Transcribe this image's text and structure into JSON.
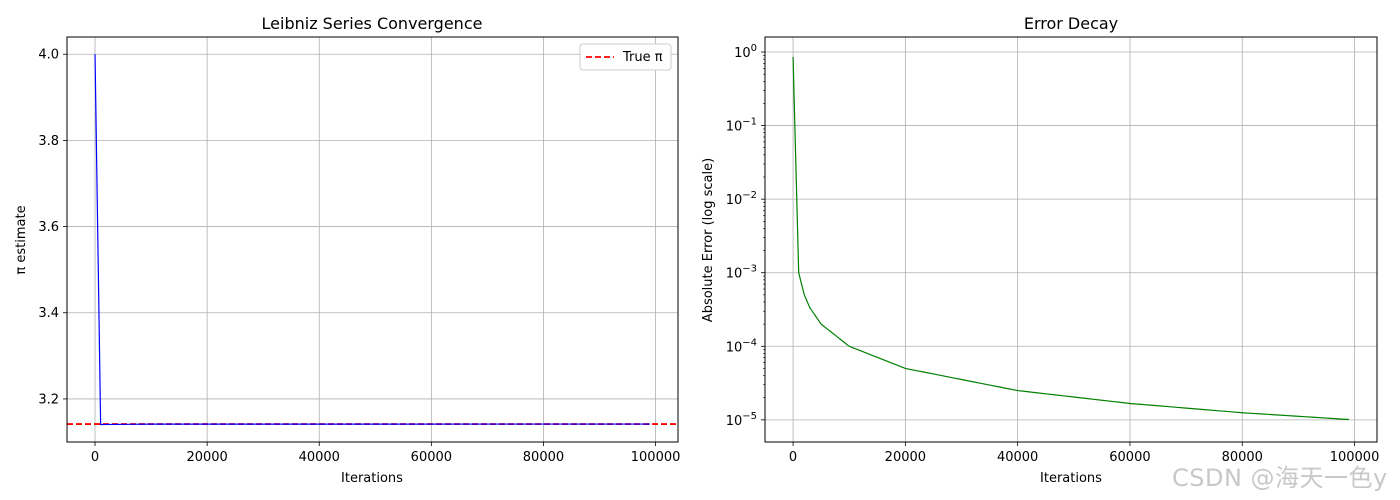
{
  "watermark": "CSDN @海天一色y",
  "colors": {
    "pi_line": "#0000ff",
    "true_pi": "#ff0000",
    "error_line": "#008000",
    "grid": "#b0b0b0"
  },
  "chart_data": [
    {
      "type": "line",
      "title": "Leibniz Series Convergence",
      "xlabel": "Iterations",
      "ylabel": "π estimate",
      "xlim": [
        -5000,
        104000
      ],
      "ylim": [
        3.1,
        4.04
      ],
      "xticks": [
        0,
        20000,
        40000,
        60000,
        80000,
        100000
      ],
      "yticks": [
        3.2,
        3.4,
        3.6,
        3.8,
        4.0
      ],
      "grid": true,
      "legend": {
        "position": "top-right",
        "entries": [
          "True π"
        ]
      },
      "series": [
        {
          "values_desc": "pi estimate",
          "x": [
            0,
            1000,
            10000,
            50000,
            99000
          ],
          "y": [
            4.0,
            3.1406,
            3.14149,
            3.14157,
            3.14158
          ]
        }
      ],
      "reference_line": {
        "name": "True π",
        "y": 3.14159,
        "style": "dashed"
      }
    },
    {
      "type": "line",
      "title": "Error Decay",
      "xlabel": "Iterations",
      "ylabel": "Absolute Error (log scale)",
      "yscale": "log",
      "xlim": [
        -5000,
        104000
      ],
      "ylim": [
        5e-06,
        1.6
      ],
      "xticks": [
        0,
        20000,
        40000,
        60000,
        80000,
        100000
      ],
      "yticks": [
        1,
        0.1,
        0.01,
        0.001,
        0.0001,
        1e-05
      ],
      "ytick_labels": [
        "10^0",
        "10^-1",
        "10^-2",
        "10^-3",
        "10^-4",
        "10^-5"
      ],
      "grid": true,
      "series": [
        {
          "x": [
            0,
            1000,
            2000,
            3000,
            5000,
            10000,
            20000,
            40000,
            60000,
            80000,
            99000
          ],
          "y": [
            0.858,
            0.001,
            0.0005,
            0.000333,
            0.0002,
            0.0001,
            5e-05,
            2.5e-05,
            1.67e-05,
            1.25e-05,
            1.01e-05
          ]
        }
      ]
    }
  ]
}
